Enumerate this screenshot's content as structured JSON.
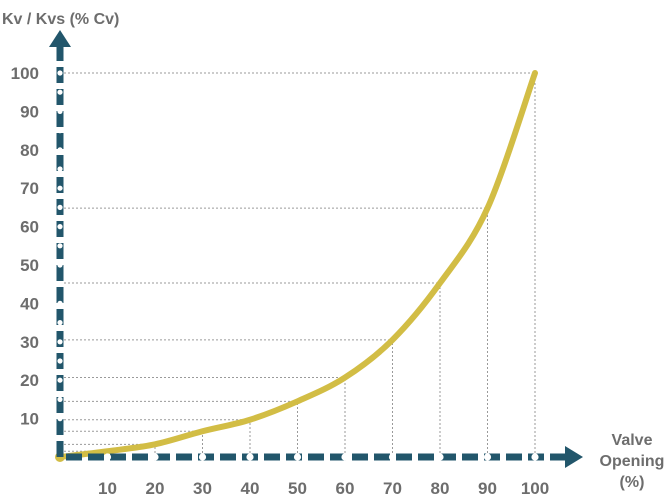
{
  "chart_data": {
    "type": "line",
    "title": "",
    "ylabel": "Kv / Kvs (% Cv)",
    "xlabel_lines": [
      "Valve",
      "Opening",
      "(%)"
    ],
    "x_ticks": [
      "10",
      "20",
      "30",
      "40",
      "50",
      "60",
      "70",
      "80",
      "90",
      "100"
    ],
    "y_ticks": [
      "10",
      "20",
      "30",
      "40",
      "50",
      "60",
      "70",
      "80",
      "90",
      "100"
    ],
    "xlim": [
      0,
      100
    ],
    "ylim": [
      0,
      100
    ],
    "grid": "dotted guides to curve",
    "series": [
      {
        "x": [
          0,
          10,
          20,
          30,
          40,
          50,
          60,
          70,
          80,
          90,
          100
        ],
        "y": [
          0,
          1.5,
          3.3,
          6.7,
          9.7,
          14.5,
          20.7,
          30.5,
          45.3,
          64.8,
          105
        ]
      }
    ],
    "colors": {
      "curve": "#d2bd45",
      "axis": "#22566b",
      "text": "#6d6d6d",
      "grid": "#9a9a9a"
    }
  }
}
